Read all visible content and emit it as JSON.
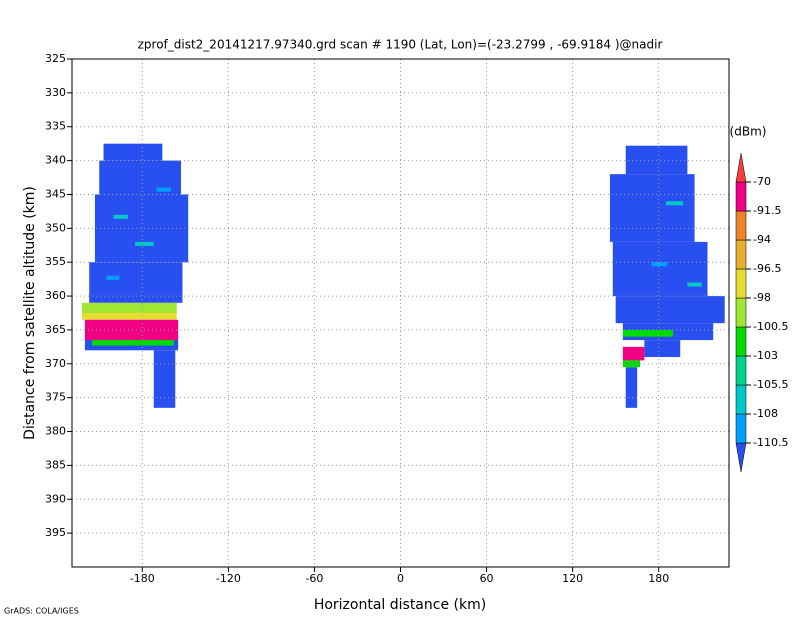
{
  "chart_data": {
    "type": "shaded",
    "title": "zprof_dist2_20141217.97340.grd  scan # 1190  (Lat, Lon)=(-23.2799 , -69.9184 )@nadir",
    "x_label": "Horizontal distance (km)",
    "y_label": "Distance from satellite altitude (km)",
    "footer": "GrADS: COLA/IGES",
    "xlim": [
      -229,
      229
    ],
    "xticks": [
      -180,
      -120,
      -60,
      0,
      60,
      120,
      180
    ],
    "ylim": [
      400,
      325
    ],
    "yticks": [
      325,
      330,
      335,
      340,
      345,
      350,
      355,
      360,
      365,
      370,
      375,
      380,
      385,
      390,
      395
    ],
    "grid": true,
    "colorbar": {
      "label": "(dBm)",
      "levels": [
        -110.5,
        -108,
        -105.5,
        -103,
        -100.5,
        -98,
        -96.5,
        -94,
        -91.5,
        -70
      ],
      "colors": [
        "#2850f0",
        "#00a0ff",
        "#00c8c8",
        "#00d28c",
        "#00dc00",
        "#a0e632",
        "#e6dc32",
        "#e6af2d",
        "#f08228",
        "#f00082",
        "#fa3c3c"
      ]
    },
    "blocks": [
      {
        "x": [
          -207,
          -166
        ],
        "y": [
          337.5,
          340
        ],
        "value": -112
      },
      {
        "x": [
          -210,
          -153
        ],
        "y": [
          340,
          345
        ],
        "value": -112
      },
      {
        "x": [
          -213,
          -148
        ],
        "y": [
          345,
          355
        ],
        "value": -112
      },
      {
        "x": [
          -217,
          -152
        ],
        "y": [
          355,
          361
        ],
        "value": -112
      },
      {
        "x": [
          -220,
          -155
        ],
        "y": [
          366,
          368
        ],
        "value": -112
      },
      {
        "x": [
          -172,
          -157
        ],
        "y": [
          368,
          376.5
        ],
        "value": -112
      },
      {
        "x": [
          -222,
          -156
        ],
        "y": [
          361,
          362.5
        ],
        "value": -99
      },
      {
        "x": [
          -222,
          -156
        ],
        "y": [
          362.5,
          363.5
        ],
        "value": -97
      },
      {
        "x": [
          -220,
          -155
        ],
        "y": [
          363.5,
          366.5
        ],
        "value": -80
      },
      {
        "x": [
          -215,
          -158
        ],
        "y": [
          366.5,
          367.3
        ],
        "value": -101
      },
      {
        "x": [
          -200,
          -190
        ],
        "y": [
          348,
          348.6
        ],
        "value": -107
      },
      {
        "x": [
          -185,
          -172
        ],
        "y": [
          352,
          352.6
        ],
        "value": -107
      },
      {
        "x": [
          -205,
          -196
        ],
        "y": [
          357,
          357.6
        ],
        "value": -109
      },
      {
        "x": [
          -170,
          -160
        ],
        "y": [
          344,
          344.6
        ],
        "value": -109
      },
      {
        "x": [
          157,
          200
        ],
        "y": [
          337.8,
          342
        ],
        "value": -112
      },
      {
        "x": [
          146,
          205
        ],
        "y": [
          342,
          352
        ],
        "value": -112
      },
      {
        "x": [
          148,
          214
        ],
        "y": [
          352,
          360
        ],
        "value": -112
      },
      {
        "x": [
          150,
          226
        ],
        "y": [
          360,
          364
        ],
        "value": -112
      },
      {
        "x": [
          155,
          218
        ],
        "y": [
          364,
          366.5
        ],
        "value": -112
      },
      {
        "x": [
          170,
          195
        ],
        "y": [
          366.5,
          369
        ],
        "value": -112
      },
      {
        "x": [
          157,
          165
        ],
        "y": [
          370.5,
          376.5
        ],
        "value": -112
      },
      {
        "x": [
          155,
          190
        ],
        "y": [
          365,
          366
        ],
        "value": -102
      },
      {
        "x": [
          155,
          170
        ],
        "y": [
          367.5,
          369.5
        ],
        "value": -80
      },
      {
        "x": [
          155,
          167
        ],
        "y": [
          369.5,
          370.5
        ],
        "value": -101
      },
      {
        "x": [
          185,
          197
        ],
        "y": [
          346,
          346.6
        ],
        "value": -107
      },
      {
        "x": [
          175,
          186
        ],
        "y": [
          355,
          355.6
        ],
        "value": -109
      },
      {
        "x": [
          200,
          210
        ],
        "y": [
          358,
          358.6
        ],
        "value": -107
      }
    ]
  }
}
